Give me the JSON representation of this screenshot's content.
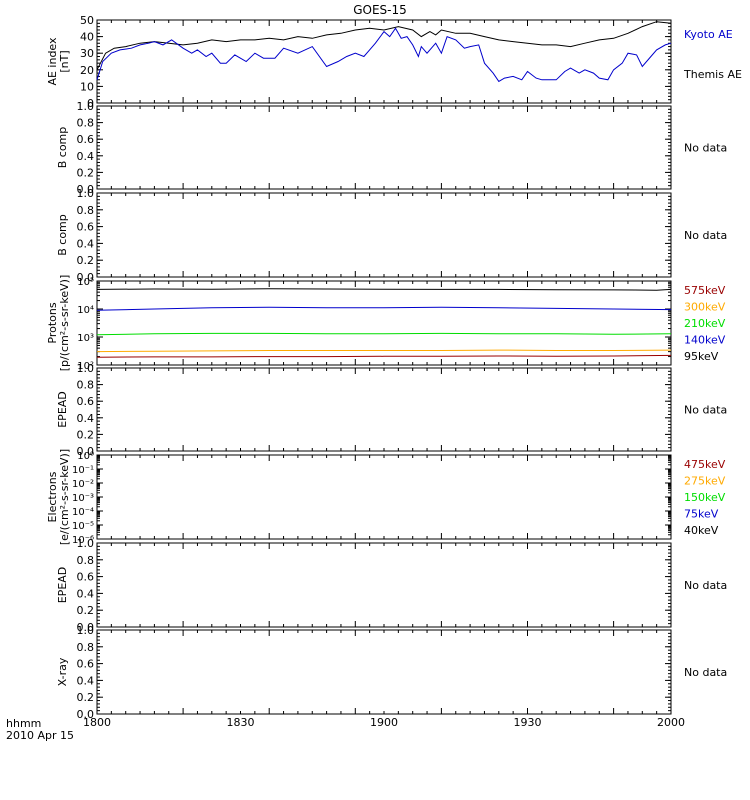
{
  "title": "GOES-15",
  "time_axis": {
    "ticks": [
      "1800",
      "1830",
      "1900",
      "1930",
      "2000"
    ],
    "corner_label_1": "hhmm",
    "corner_label_2": "2010 Apr 15"
  },
  "colors": {
    "black": "#000000",
    "blue": "#0000cc",
    "green": "#00dd00",
    "orange": "#ffaa00",
    "darkred": "#990000"
  },
  "chart_data": [
    {
      "id": "ae",
      "type": "line",
      "ylabel_lines": [
        "AE index",
        "[nT]"
      ],
      "ylim": [
        0,
        50
      ],
      "scale": "linear",
      "yticks": [
        "0",
        "10",
        "20",
        "30",
        "40",
        "50"
      ],
      "yticks_values": [
        0,
        10,
        20,
        30,
        40,
        50
      ],
      "legend": [
        {
          "name": "Kyoto AE",
          "color": "#0000cc"
        },
        {
          "name": "Themis AE",
          "color": "#000000"
        }
      ],
      "series": [
        {
          "name": "Themis AE",
          "color": "#000000",
          "x": [
            0,
            3,
            6,
            10,
            15,
            20,
            25,
            30,
            35,
            40,
            45,
            50,
            55,
            60,
            65,
            70,
            75,
            80,
            85,
            90,
            95,
            100,
            105,
            110,
            113,
            116,
            118,
            120,
            125,
            130,
            135,
            140,
            145,
            150,
            155,
            160,
            165,
            170,
            175,
            180,
            185,
            190,
            195,
            200
          ],
          "y": [
            20,
            30,
            33,
            34,
            36,
            37,
            36,
            35,
            36,
            38,
            37,
            38,
            38,
            39,
            38,
            40,
            39,
            41,
            42,
            44,
            45,
            44,
            46,
            44,
            40,
            43,
            41,
            44,
            42,
            42,
            40,
            38,
            37,
            36,
            35,
            35,
            34,
            36,
            38,
            39,
            42,
            46,
            49,
            48
          ]
        },
        {
          "name": "Kyoto AE",
          "color": "#0000cc",
          "x": [
            0,
            2,
            5,
            8,
            12,
            15,
            18,
            20,
            23,
            26,
            30,
            33,
            35,
            38,
            40,
            43,
            45,
            48,
            52,
            55,
            58,
            62,
            65,
            70,
            75,
            80,
            84,
            87,
            90,
            93,
            95,
            97,
            100,
            102,
            104,
            106,
            108,
            110,
            112,
            113,
            115,
            118,
            120,
            122,
            125,
            128,
            130,
            133,
            135,
            138,
            140,
            142,
            145,
            148,
            150,
            153,
            155,
            160,
            163,
            165,
            168,
            170,
            173,
            175,
            178,
            180,
            183,
            185,
            188,
            190,
            193,
            195,
            198,
            200
          ],
          "y": [
            14,
            25,
            30,
            32,
            33,
            35,
            36,
            37,
            35,
            38,
            33,
            30,
            32,
            28,
            30,
            24,
            24,
            29,
            25,
            30,
            27,
            27,
            33,
            30,
            34,
            22,
            25,
            28,
            30,
            28,
            32,
            36,
            43,
            40,
            45,
            39,
            40,
            35,
            28,
            34,
            30,
            36,
            30,
            40,
            38,
            33,
            34,
            35,
            24,
            18,
            13,
            15,
            16,
            14,
            19,
            15,
            14,
            14,
            19,
            21,
            18,
            20,
            18,
            15,
            14,
            20,
            24,
            30,
            29,
            22,
            28,
            32,
            35,
            36
          ]
        }
      ]
    },
    {
      "id": "b1",
      "type": "line",
      "ylabel_lines": [
        "B comp"
      ],
      "ylim": [
        0,
        1
      ],
      "scale": "linear",
      "yticks": [
        "0.0",
        "0.2",
        "0.4",
        "0.6",
        "0.8",
        "1.0"
      ],
      "yticks_values": [
        0,
        0.2,
        0.4,
        0.6,
        0.8,
        1.0
      ],
      "legend": [
        {
          "name": "No data",
          "color": "#000000"
        }
      ],
      "series": []
    },
    {
      "id": "b2",
      "type": "line",
      "ylabel_lines": [
        "B comp"
      ],
      "ylim": [
        0,
        1
      ],
      "scale": "linear",
      "yticks": [
        "0.0",
        "0.2",
        "0.4",
        "0.6",
        "0.8",
        "1.0"
      ],
      "yticks_values": [
        0,
        0.2,
        0.4,
        0.6,
        0.8,
        1.0
      ],
      "legend": [
        {
          "name": "No data",
          "color": "#000000"
        }
      ],
      "series": []
    },
    {
      "id": "protons",
      "type": "line",
      "ylabel_lines": [
        "Protons",
        "[p/(cm²-s-sr-keV)]"
      ],
      "ylim": [
        100,
        100000
      ],
      "scale": "log",
      "yticks": [
        "10²",
        "10³",
        "10⁴",
        "10⁵"
      ],
      "yticks_values": [
        100,
        1000,
        10000,
        100000
      ],
      "legend": [
        {
          "name": "575keV",
          "color": "#990000"
        },
        {
          "name": "300keV",
          "color": "#ffaa00"
        },
        {
          "name": "210keV",
          "color": "#00dd00"
        },
        {
          "name": "140keV",
          "color": "#0000cc"
        },
        {
          "name": "95keV",
          "color": "#000000"
        }
      ],
      "series": [
        {
          "name": "95keV",
          "color": "#000000",
          "x": [
            0,
            20,
            40,
            60,
            80,
            100,
            120,
            140,
            160,
            180,
            195,
            200
          ],
          "y": [
            50000,
            52000,
            51000,
            53000,
            52000,
            51000,
            50000,
            50000,
            49000,
            48000,
            47000,
            50000
          ]
        },
        {
          "name": "140keV",
          "color": "#0000cc",
          "x": [
            0,
            20,
            40,
            60,
            80,
            100,
            120,
            140,
            160,
            180,
            200
          ],
          "y": [
            9000,
            10000,
            11000,
            11500,
            11000,
            11000,
            11500,
            11000,
            10500,
            10000,
            9500
          ]
        },
        {
          "name": "210keV",
          "color": "#00dd00",
          "x": [
            0,
            20,
            40,
            60,
            80,
            100,
            120,
            140,
            160,
            180,
            200
          ],
          "y": [
            1200,
            1300,
            1350,
            1350,
            1300,
            1300,
            1350,
            1300,
            1300,
            1250,
            1300
          ]
        },
        {
          "name": "300keV",
          "color": "#ffaa00",
          "x": [
            0,
            20,
            40,
            60,
            80,
            100,
            120,
            140,
            160,
            180,
            200
          ],
          "y": [
            300,
            310,
            320,
            330,
            330,
            330,
            330,
            340,
            330,
            330,
            340
          ]
        },
        {
          "name": "575keV",
          "color": "#990000",
          "x": [
            0,
            20,
            40,
            60,
            80,
            100,
            120,
            140,
            160,
            180,
            200
          ],
          "y": [
            190,
            195,
            195,
            200,
            200,
            205,
            205,
            210,
            205,
            210,
            220
          ]
        }
      ]
    },
    {
      "id": "epead1",
      "type": "line",
      "ylabel_lines": [
        "EPEAD"
      ],
      "ylim": [
        0,
        1
      ],
      "scale": "linear",
      "yticks": [
        "0.0",
        "0.2",
        "0.4",
        "0.6",
        "0.8",
        "1.0"
      ],
      "yticks_values": [
        0,
        0.2,
        0.4,
        0.6,
        0.8,
        1.0
      ],
      "legend": [
        {
          "name": "No data",
          "color": "#000000"
        }
      ],
      "series": []
    },
    {
      "id": "electrons",
      "type": "line",
      "ylabel_lines": [
        "Electrons",
        "[e/(cm²-s-sr-keV)]"
      ],
      "ylim": [
        1e-06,
        1
      ],
      "scale": "log",
      "yticks": [
        "10⁻⁶",
        "10⁻⁵",
        "10⁻⁴",
        "10⁻³",
        "10⁻²",
        "10⁻¹",
        "10⁰"
      ],
      "yticks_values": [
        1e-06,
        1e-05,
        0.0001,
        0.001,
        0.01,
        0.1,
        1
      ],
      "legend": [
        {
          "name": "475keV",
          "color": "#990000"
        },
        {
          "name": "275keV",
          "color": "#ffaa00"
        },
        {
          "name": "150keV",
          "color": "#00dd00"
        },
        {
          "name": "75keV",
          "color": "#0000cc"
        },
        {
          "name": "40keV",
          "color": "#000000"
        }
      ],
      "series": []
    },
    {
      "id": "epead2",
      "type": "line",
      "ylabel_lines": [
        "EPEAD"
      ],
      "ylim": [
        0,
        1
      ],
      "scale": "linear",
      "yticks": [
        "0.0",
        "0.2",
        "0.4",
        "0.6",
        "0.8",
        "1.0"
      ],
      "yticks_values": [
        0,
        0.2,
        0.4,
        0.6,
        0.8,
        1.0
      ],
      "legend": [
        {
          "name": "No data",
          "color": "#000000"
        }
      ],
      "series": []
    },
    {
      "id": "xray",
      "type": "line",
      "ylabel_lines": [
        "X-ray"
      ],
      "ylim": [
        0,
        1
      ],
      "scale": "linear",
      "yticks": [
        "0.0",
        "0.2",
        "0.4",
        "0.6",
        "0.8",
        "1.0"
      ],
      "yticks_values": [
        0,
        0.2,
        0.4,
        0.6,
        0.8,
        1.0
      ],
      "legend": [
        {
          "name": "No data",
          "color": "#000000"
        }
      ],
      "series": []
    }
  ]
}
